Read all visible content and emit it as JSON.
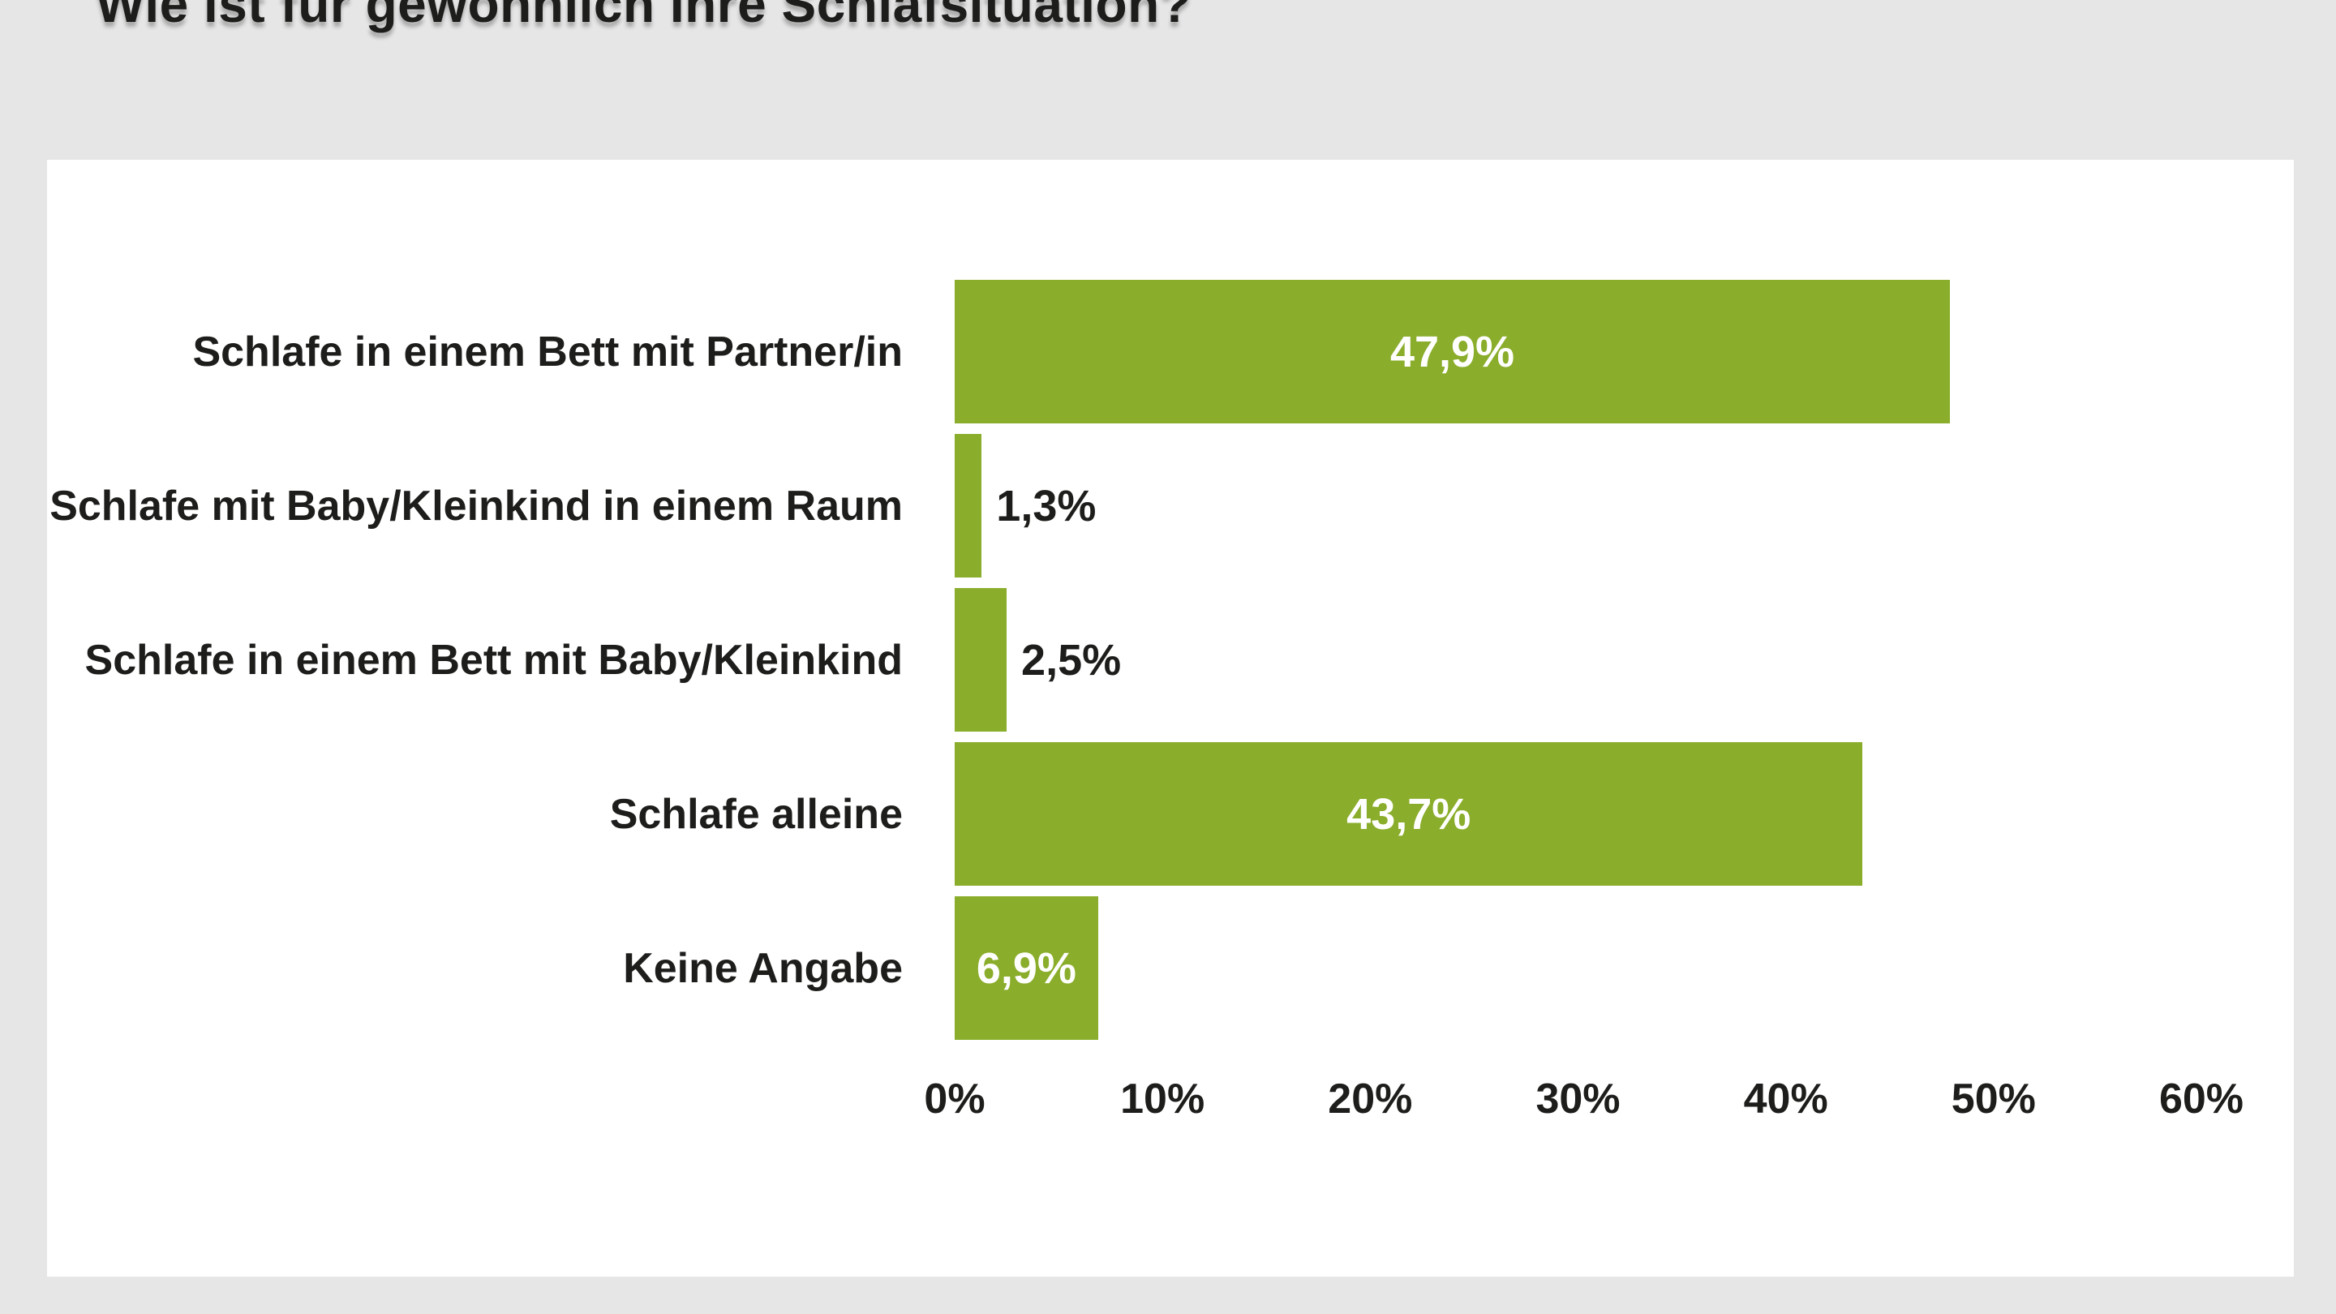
{
  "page": {
    "background_color": "#e6e6e7",
    "panel_color": "#ffffff",
    "text_color": "#1d1d1b"
  },
  "chart_data": {
    "type": "bar",
    "orientation": "horizontal",
    "title": "Wie ist für gewöhnlich Ihre Schlafsituation?",
    "categories": [
      "Schlafe in einem Bett mit Partner/in",
      "Schlafe mit Baby/Kleinkind in einem Raum",
      "Schlafe in einem Bett mit Baby/Kleinkind",
      "Schlafe alleine",
      "Keine Angabe"
    ],
    "values": [
      47.9,
      1.3,
      2.5,
      43.7,
      6.9
    ],
    "value_labels": [
      "47,9%",
      "1,3%",
      "2,5%",
      "43,7%",
      "6,9%"
    ],
    "value_label_placement": [
      "inside",
      "outside",
      "outside",
      "inside",
      "inside"
    ],
    "xlabel": "",
    "ylabel": "",
    "xlim": [
      0,
      60
    ],
    "x_ticks": [
      {
        "value": 0,
        "label": "0%"
      },
      {
        "value": 10,
        "label": "10%"
      },
      {
        "value": 20,
        "label": "20%"
      },
      {
        "value": 30,
        "label": "30%"
      },
      {
        "value": 40,
        "label": "40%"
      },
      {
        "value": 50,
        "label": "50%"
      },
      {
        "value": 60,
        "label": "60%"
      }
    ],
    "bar_color": "#8aad2b",
    "value_inside_color": "#ffffff",
    "value_outside_color": "#1d1d1b",
    "grid": false,
    "legend": false
  }
}
